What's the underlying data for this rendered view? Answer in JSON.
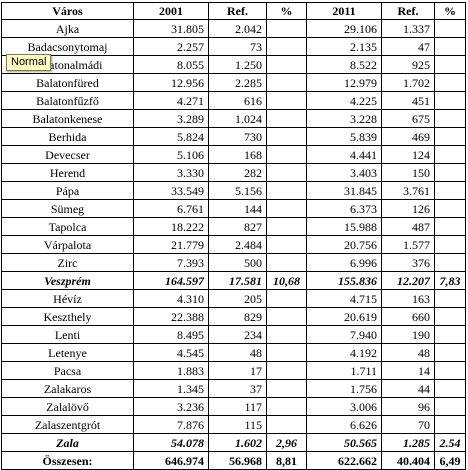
{
  "table": {
    "headers": [
      "Város",
      "2001",
      "Ref.",
      "%",
      "2011",
      "Ref.",
      "%"
    ],
    "rows": [
      {
        "city": "Ajka",
        "v2001": "31.805",
        "ref2001": "2.042",
        "p2001": "",
        "v2011": "29.106",
        "ref2011": "1.337",
        "p2011": "",
        "type": "normal"
      },
      {
        "city": "Badacsonytomaj",
        "v2001": "2.257",
        "ref2001": "73",
        "p2001": "",
        "v2011": "2.135",
        "ref2011": "47",
        "p2011": "",
        "type": "normal"
      },
      {
        "city": "Balatonalmádi",
        "v2001": "8.055",
        "ref2001": "1.250",
        "p2001": "",
        "v2011": "8.522",
        "ref2011": "925",
        "p2011": "",
        "type": "normal"
      },
      {
        "city": "Balatonfüred",
        "v2001": "12.956",
        "ref2001": "2.285",
        "p2001": "",
        "v2011": "12.979",
        "ref2011": "1.702",
        "p2011": "",
        "type": "normal"
      },
      {
        "city": "Balatonfűzfő",
        "v2001": "4.271",
        "ref2001": "616",
        "p2001": "",
        "v2011": "4.225",
        "ref2011": "451",
        "p2011": "",
        "type": "normal"
      },
      {
        "city": "Balatonkenese",
        "v2001": "3.289",
        "ref2001": "1.024",
        "p2001": "",
        "v2011": "3.228",
        "ref2011": "675",
        "p2011": "",
        "type": "normal"
      },
      {
        "city": "Berhida",
        "v2001": "5.824",
        "ref2001": "730",
        "p2001": "",
        "v2011": "5.839",
        "ref2011": "469",
        "p2011": "",
        "type": "normal"
      },
      {
        "city": "Devecser",
        "v2001": "5.106",
        "ref2001": "168",
        "p2001": "",
        "v2011": "4.441",
        "ref2011": "124",
        "p2011": "",
        "type": "normal"
      },
      {
        "city": "Herend",
        "v2001": "3.330",
        "ref2001": "282",
        "p2001": "",
        "v2011": "3.403",
        "ref2011": "150",
        "p2011": "",
        "type": "normal"
      },
      {
        "city": "Pápa",
        "v2001": "33.549",
        "ref2001": "5.156",
        "p2001": "",
        "v2011": "31.845",
        "ref2011": "3.761",
        "p2011": "",
        "type": "normal"
      },
      {
        "city": "Sümeg",
        "v2001": "6.761",
        "ref2001": "144",
        "p2001": "",
        "v2011": "6.373",
        "ref2011": "126",
        "p2011": "",
        "type": "normal"
      },
      {
        "city": "Tapolca",
        "v2001": "18.222",
        "ref2001": "827",
        "p2001": "",
        "v2011": "15.988",
        "ref2011": "487",
        "p2011": "",
        "type": "normal"
      },
      {
        "city": "Várpalota",
        "v2001": "21.779",
        "ref2001": "2.484",
        "p2001": "",
        "v2011": "20.756",
        "ref2011": "1.577",
        "p2011": "",
        "type": "normal"
      },
      {
        "city": "Zirc",
        "v2001": "7.393",
        "ref2001": "500",
        "p2001": "",
        "v2011": "6.996",
        "ref2011": "376",
        "p2011": "",
        "type": "normal"
      },
      {
        "city": "Veszprém",
        "v2001": "164.597",
        "ref2001": "17.581",
        "p2001": "10,68",
        "v2011": "155.836",
        "ref2011": "12.207",
        "p2011": "7,83",
        "type": "sum"
      },
      {
        "city": "Hévíz",
        "v2001": "4.310",
        "ref2001": "205",
        "p2001": "",
        "v2011": "4.715",
        "ref2011": "163",
        "p2011": "",
        "type": "normal"
      },
      {
        "city": "Keszthely",
        "v2001": "22.388",
        "ref2001": "829",
        "p2001": "",
        "v2011": "20.619",
        "ref2011": "660",
        "p2011": "",
        "type": "normal"
      },
      {
        "city": "Lenti",
        "v2001": "8.495",
        "ref2001": "234",
        "p2001": "",
        "v2011": "7.940",
        "ref2011": "190",
        "p2011": "",
        "type": "normal"
      },
      {
        "city": "Letenye",
        "v2001": "4.545",
        "ref2001": "48",
        "p2001": "",
        "v2011": "4.192",
        "ref2011": "48",
        "p2011": "",
        "type": "normal"
      },
      {
        "city": "Pacsa",
        "v2001": "1.883",
        "ref2001": "17",
        "p2001": "",
        "v2011": "1.711",
        "ref2011": "14",
        "p2011": "",
        "type": "normal"
      },
      {
        "city": "Zalakaros",
        "v2001": "1.345",
        "ref2001": "37",
        "p2001": "",
        "v2011": "1.756",
        "ref2011": "44",
        "p2011": "",
        "type": "normal"
      },
      {
        "city": "Zalalövő",
        "v2001": "3.236",
        "ref2001": "117",
        "p2001": "",
        "v2011": "3.006",
        "ref2011": "96",
        "p2011": "",
        "type": "normal"
      },
      {
        "city": "Zalaszentgrót",
        "v2001": "7.876",
        "ref2001": "115",
        "p2001": "",
        "v2011": "6.626",
        "ref2011": "70",
        "p2011": "",
        "type": "normal"
      },
      {
        "city": "Zala",
        "v2001": "54.078",
        "ref2001": "1.602",
        "p2001": "2,96",
        "v2011": "50.565",
        "ref2011": "1.285",
        "p2011": "2.54",
        "type": "sum"
      },
      {
        "city": "Összesen:",
        "v2001": "646.974",
        "ref2001": "56.968",
        "p2001": "8,81",
        "v2011": "622.662",
        "ref2011": "40.404",
        "p2011": "6,49",
        "type": "total"
      }
    ]
  },
  "tooltip": {
    "text": "Normal"
  }
}
